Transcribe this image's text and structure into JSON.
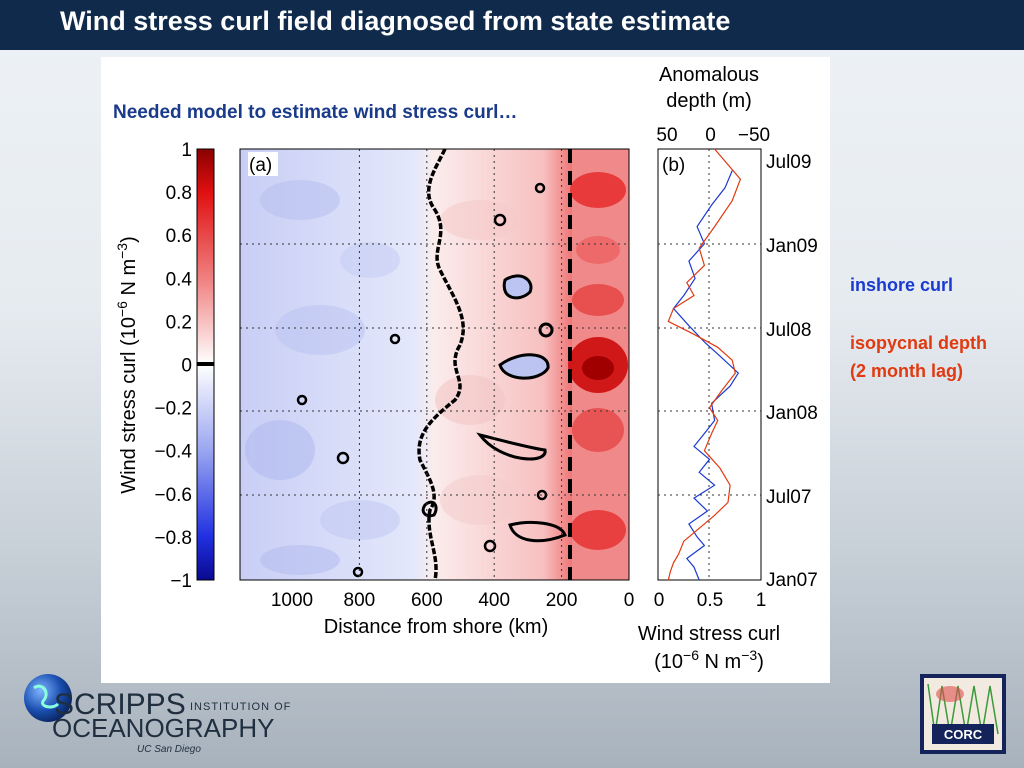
{
  "title": "Wind stress curl field diagnosed from state estimate",
  "subtitle": "Needed model to estimate wind stress curl…",
  "notes": {
    "inshore": "inshore curl",
    "isopycnal_line1": "isopycnal depth",
    "isopycnal_line2": "(2 month lag)"
  },
  "logo": {
    "scripps": "SCRIPPS",
    "institution": "INSTITUTION OF",
    "ocean": "OCEANOGRAPHY",
    "ucsd": "UC San Diego",
    "corc": "CORC"
  },
  "colors": {
    "title_bar": "#0f2a4a",
    "inshore_curl": "#1a3ad0",
    "isopycnal_depth": "#e03a10"
  },
  "chart_data": [
    {
      "type": "heatmap",
      "panel_label": "(a)",
      "xlabel": "Distance from shore (km)",
      "x_ticks": [
        "1000",
        "800",
        "600",
        "400",
        "200",
        "0"
      ],
      "y_ticks": [
        "Jul09",
        "Jan09",
        "Jul08",
        "Jan08",
        "Jul07",
        "Jan07"
      ],
      "colorbar": {
        "label": "Wind stress curl (10−6 N m−3)",
        "range": [
          -1,
          1
        ],
        "ticks": [
          "1",
          "0.8",
          "0.6",
          "0.4",
          "0.2",
          "0",
          "−0.2",
          "−0.4",
          "−0.6",
          "−0.8",
          "−1"
        ]
      },
      "zero_contour": true,
      "dashed_line_km": 200,
      "grid": true
    },
    {
      "type": "line",
      "panel_label": "(b)",
      "top_axis_label_line1": "Anomalous",
      "top_axis_label_line2": "depth (m)",
      "top_ticks": [
        "50",
        "0",
        "−50"
      ],
      "bottom_axis_label_line1": "Wind stress curl",
      "bottom_axis_label_line2": "(10−6 N m−3)",
      "bottom_ticks": [
        "0",
        "0.5",
        "1"
      ],
      "series": [
        {
          "name": "inshore curl",
          "color": "#1a3ad0",
          "x": [
            0.72,
            0.65,
            0.52,
            0.38,
            0.45,
            0.3,
            0.36,
            0.25,
            0.15,
            0.3,
            0.46,
            0.6,
            0.78,
            0.7,
            0.52,
            0.55,
            0.45,
            0.35,
            0.5,
            0.4,
            0.55,
            0.35,
            0.48,
            0.3,
            0.38,
            0.45,
            0.28,
            0.35,
            0.4
          ],
          "y_frac": [
            0.05,
            0.09,
            0.13,
            0.18,
            0.22,
            0.26,
            0.3,
            0.34,
            0.37,
            0.41,
            0.45,
            0.48,
            0.52,
            0.55,
            0.59,
            0.63,
            0.66,
            0.69,
            0.72,
            0.75,
            0.78,
            0.81,
            0.84,
            0.87,
            0.9,
            0.92,
            0.95,
            0.97,
            1.0
          ]
        },
        {
          "name": "isopycnal depth (2 month lag)",
          "color": "#e03a10",
          "x": [
            0.55,
            0.8,
            0.72,
            0.55,
            0.4,
            0.45,
            0.28,
            0.35,
            0.15,
            0.1,
            0.35,
            0.58,
            0.72,
            0.75,
            0.62,
            0.5,
            0.58,
            0.52,
            0.45,
            0.6,
            0.7,
            0.68,
            0.55,
            0.4,
            0.25,
            0.2,
            0.15,
            0.12,
            0.1
          ],
          "y_frac": [
            0.0,
            0.07,
            0.12,
            0.18,
            0.23,
            0.27,
            0.31,
            0.34,
            0.37,
            0.4,
            0.43,
            0.46,
            0.49,
            0.52,
            0.56,
            0.6,
            0.63,
            0.66,
            0.7,
            0.74,
            0.78,
            0.82,
            0.85,
            0.88,
            0.91,
            0.94,
            0.96,
            0.98,
            1.0
          ]
        }
      ],
      "grid": true
    }
  ]
}
